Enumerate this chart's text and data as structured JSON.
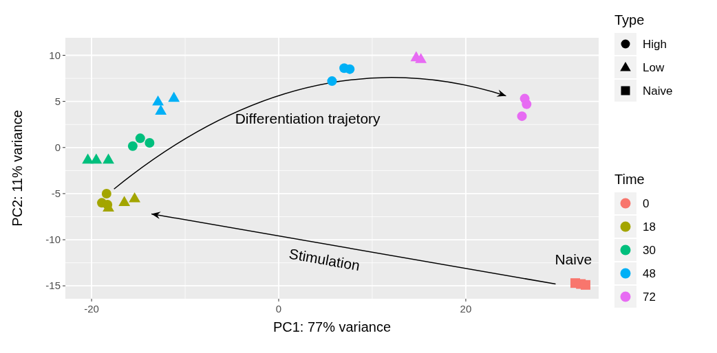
{
  "chart_data": {
    "type": "scatter",
    "xlabel": "PC1: 77% variance",
    "ylabel": "PC2: 11% variance",
    "legend_title": [
      "Type",
      "Time"
    ],
    "grid": true,
    "xlim": [
      -22.8,
      34.2
    ],
    "xticks": [
      -20,
      0,
      20
    ],
    "ylim": [
      -16.4,
      11.9
    ],
    "yticks": [
      -15,
      -10,
      -5,
      0,
      5,
      10
    ],
    "series": [
      {
        "color": "#f8766d",
        "marker": "square",
        "x": [
          31.7,
          32.3,
          32.8
        ],
        "values": [
          -14.7,
          -14.8,
          -14.9
        ]
      },
      {
        "color": "#a3a500",
        "marker": "circle",
        "x": [
          -18.4,
          -18.9,
          -18.3
        ],
        "values": [
          -5.0,
          -6.0,
          -6.2
        ]
      },
      {
        "color": "#a3a500",
        "marker": "triangle",
        "x": [
          -18.2,
          -16.5,
          -15.4
        ],
        "values": [
          -6.5,
          -5.9,
          -5.5
        ]
      },
      {
        "color": "#00bf7d",
        "marker": "circle",
        "x": [
          -15.6,
          -14.8,
          -13.8
        ],
        "values": [
          0.15,
          1.0,
          0.5
        ]
      },
      {
        "color": "#00bf7d",
        "marker": "triangle",
        "x": [
          -20.4,
          -19.5,
          -18.2
        ],
        "values": [
          -1.3,
          -1.3,
          -1.3
        ]
      },
      {
        "color": "#00b0f6",
        "marker": "circle",
        "x": [
          5.7,
          7.0,
          7.6
        ],
        "values": [
          7.2,
          8.6,
          8.5
        ]
      },
      {
        "color": "#00b0f6",
        "marker": "triangle",
        "x": [
          -12.9,
          -11.2,
          -12.6
        ],
        "values": [
          5.0,
          5.4,
          4.0
        ]
      },
      {
        "color": "#e76bf3",
        "marker": "circle",
        "x": [
          26.3,
          26.5,
          26.0
        ],
        "values": [
          5.3,
          4.7,
          3.4
        ]
      },
      {
        "color": "#e76bf3",
        "marker": "triangle",
        "x": [
          14.7,
          15.2
        ],
        "values": [
          9.8,
          9.6
        ]
      }
    ],
    "annotations": [
      "Differentiation trajetory",
      "Stimulation",
      "Naive",
      "High",
      "Low",
      "Naive",
      "0",
      "18",
      "30",
      "48",
      "72"
    ]
  }
}
